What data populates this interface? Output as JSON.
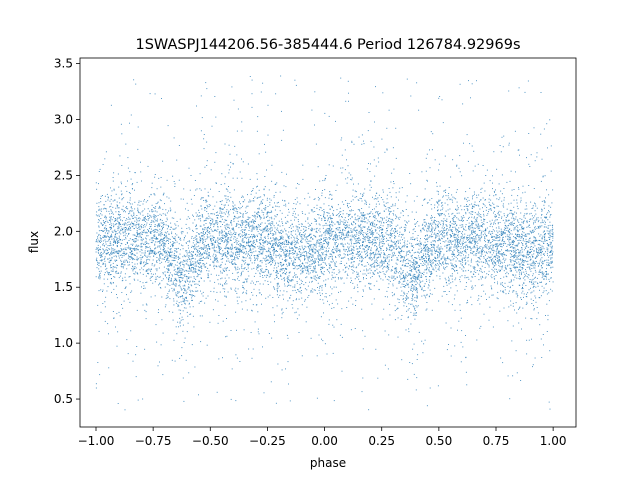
{
  "chart_data": {
    "type": "scatter",
    "title": "1SWASPJ144206.56-385444.6 Period 126784.92969s",
    "xlabel": "phase",
    "ylabel": "flux",
    "xlim": [
      -1.07,
      1.1
    ],
    "ylim": [
      0.25,
      3.55
    ],
    "x_ticks": [
      -1.0,
      -0.75,
      -0.5,
      -0.25,
      0.0,
      0.25,
      0.5,
      0.75,
      1.0
    ],
    "x_tick_labels": [
      "−1.00",
      "−0.75",
      "−0.50",
      "−0.25",
      "0.00",
      "0.25",
      "0.50",
      "0.75",
      "1.00"
    ],
    "y_ticks": [
      0.5,
      1.0,
      1.5,
      2.0,
      2.5,
      3.0,
      3.5
    ],
    "y_tick_labels": [
      "0.5",
      "1.0",
      "1.5",
      "2.0",
      "2.5",
      "3.0",
      "3.5"
    ],
    "grid": false,
    "legend": "none",
    "marker_color": "#1f77b4",
    "series": [
      {
        "x_range": [
          -1.0,
          1.0
        ],
        "baseline_flux": 1.92,
        "scatter_sd": 0.2,
        "y_range": [
          0.4,
          3.4
        ],
        "eclipses": [
          {
            "phase": -0.62,
            "min_flux": 1.58
          },
          {
            "phase": 0.38,
            "min_flux": 1.58
          }
        ],
        "secondary_dips": [
          {
            "phase": -0.12,
            "min_flux": 1.8
          },
          {
            "phase": 0.88,
            "min_flux": 1.8
          }
        ]
      }
    ]
  }
}
